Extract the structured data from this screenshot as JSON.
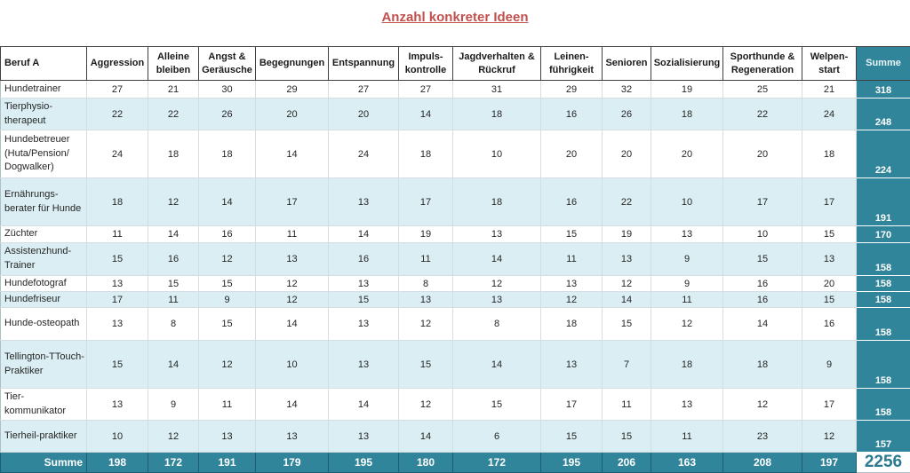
{
  "title": "Anzahl konkreter Ideen",
  "colors": {
    "accent_teal": "#31859B",
    "band_light_blue": "#DAEEF3",
    "title_red": "#C0504D"
  },
  "chart_data": {
    "type": "table",
    "title": "Anzahl konkreter Ideen",
    "corner_header": "Beruf A",
    "columns": [
      "Aggression",
      "Alleine bleiben",
      "Angst & Geräusche",
      "Begegnungen",
      "Entspannung",
      "Impuls-kontrolle",
      "Jagdverhalten & Rückruf",
      "Leinen-führigkeit",
      "Senioren",
      "Sozialisierung",
      "Sporthunde & Regeneration",
      "Welpen-start"
    ],
    "sum_header": "Summe",
    "rows": [
      {
        "label": "Hundetrainer",
        "values": [
          27,
          21,
          30,
          29,
          27,
          27,
          31,
          29,
          32,
          19,
          25,
          21
        ],
        "sum": "318"
      },
      {
        "label": "Tierphysio-therapeut",
        "values": [
          22,
          22,
          26,
          20,
          20,
          14,
          18,
          16,
          26,
          18,
          22,
          24
        ],
        "sum": "248"
      },
      {
        "label": "Hundebetreuer (Huta/Pension/ Dogwalker)",
        "values": [
          24,
          18,
          18,
          14,
          24,
          18,
          10,
          20,
          20,
          20,
          20,
          18
        ],
        "sum": "224"
      },
      {
        "label": "Ernährungs-berater für Hunde",
        "values": [
          18,
          12,
          14,
          17,
          13,
          17,
          18,
          16,
          22,
          10,
          17,
          17
        ],
        "sum": "191"
      },
      {
        "label": "Züchter",
        "values": [
          11,
          14,
          16,
          11,
          14,
          19,
          13,
          15,
          19,
          13,
          10,
          15
        ],
        "sum": "170"
      },
      {
        "label": "Assistenzhund-Trainer",
        "values": [
          15,
          16,
          12,
          13,
          16,
          11,
          14,
          11,
          13,
          9,
          15,
          13
        ],
        "sum": "158"
      },
      {
        "label": "Hundefotograf",
        "values": [
          13,
          15,
          15,
          12,
          13,
          8,
          12,
          13,
          12,
          9,
          16,
          20
        ],
        "sum": "158"
      },
      {
        "label": "Hundefriseur",
        "values": [
          17,
          11,
          9,
          12,
          15,
          13,
          13,
          12,
          14,
          11,
          16,
          15
        ],
        "sum": "158"
      },
      {
        "label": "Hunde-osteopath",
        "values": [
          13,
          8,
          15,
          14,
          13,
          12,
          8,
          18,
          15,
          12,
          14,
          16
        ],
        "sum": "158"
      },
      {
        "label": "Tellington-TTouch-Praktiker",
        "values": [
          15,
          14,
          12,
          10,
          13,
          15,
          14,
          13,
          7,
          18,
          18,
          9
        ],
        "sum": "158"
      },
      {
        "label": "Tier-kommunikator",
        "values": [
          13,
          9,
          11,
          14,
          14,
          12,
          15,
          17,
          11,
          13,
          12,
          17
        ],
        "sum": "158"
      },
      {
        "label": "Tierheil-praktiker",
        "values": [
          10,
          12,
          13,
          13,
          13,
          14,
          6,
          15,
          15,
          11,
          23,
          12
        ],
        "sum": "157"
      }
    ],
    "footer": {
      "label": "Summe",
      "values": [
        198,
        172,
        191,
        179,
        195,
        180,
        172,
        195,
        206,
        163,
        208,
        197
      ],
      "grand_total": "2256"
    }
  }
}
